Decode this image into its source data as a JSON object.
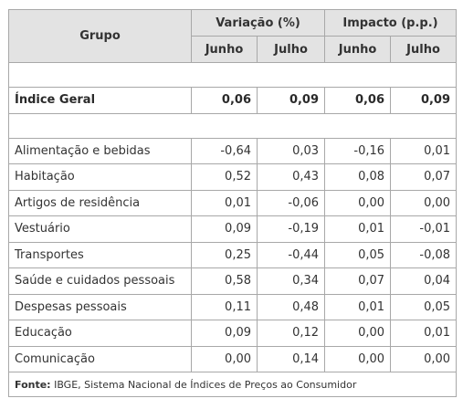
{
  "header": {
    "grupo": "Grupo",
    "variacao": "Variação (%)",
    "impacto": "Impacto (p.p.)",
    "junho": "Junho",
    "julho": "Julho"
  },
  "geral": {
    "label": "Índice Geral",
    "variacao_junho": "0,06",
    "variacao_julho": "0,09",
    "impacto_junho": "0,06",
    "impacto_julho": "0,09"
  },
  "rows": [
    {
      "label": "Alimentação e bebidas",
      "variacao_junho": "-0,64",
      "variacao_julho": "0,03",
      "impacto_junho": "-0,16",
      "impacto_julho": "0,01"
    },
    {
      "label": "Habitação",
      "variacao_junho": "0,52",
      "variacao_julho": "0,43",
      "impacto_junho": "0,08",
      "impacto_julho": "0,07"
    },
    {
      "label": "Artigos de residência",
      "variacao_junho": "0,01",
      "variacao_julho": "-0,06",
      "impacto_junho": "0,00",
      "impacto_julho": "0,00"
    },
    {
      "label": "Vestuário",
      "variacao_junho": "0,09",
      "variacao_julho": "-0,19",
      "impacto_junho": "0,01",
      "impacto_julho": "-0,01"
    },
    {
      "label": "Transportes",
      "variacao_junho": "0,25",
      "variacao_julho": "-0,44",
      "impacto_junho": "0,05",
      "impacto_julho": "-0,08"
    },
    {
      "label": "Saúde e cuidados pessoais",
      "variacao_junho": "0,58",
      "variacao_julho": "0,34",
      "impacto_junho": "0,07",
      "impacto_julho": "0,04"
    },
    {
      "label": "Despesas pessoais",
      "variacao_junho": "0,11",
      "variacao_julho": "0,48",
      "impacto_junho": "0,01",
      "impacto_julho": "0,05"
    },
    {
      "label": "Educação",
      "variacao_junho": "0,09",
      "variacao_julho": "0,12",
      "impacto_junho": "0,00",
      "impacto_julho": "0,01"
    },
    {
      "label": "Comunicação",
      "variacao_junho": "0,00",
      "variacao_julho": "0,14",
      "impacto_junho": "0,00",
      "impacto_julho": "0,00"
    }
  ],
  "source": {
    "label": "Fonte:",
    "text": " IBGE, Sistema Nacional de Índices de Preços ao Consumidor"
  }
}
